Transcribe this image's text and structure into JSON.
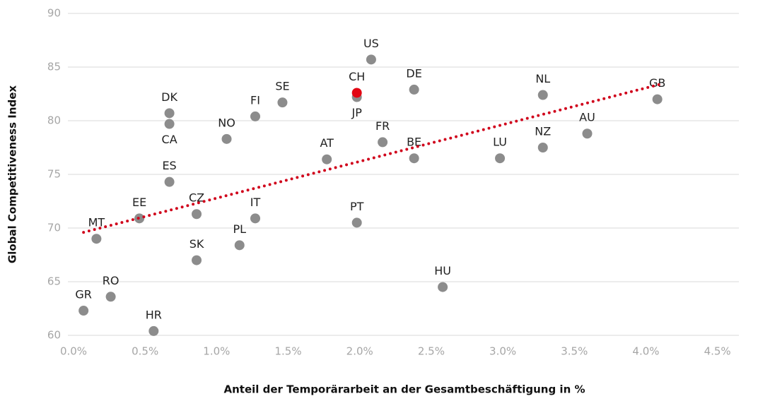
{
  "chart_data": {
    "type": "scatter",
    "xlabel": "Anteil der Temporärarbeit an der Gesamtbeschäftigung in %",
    "ylabel": "Global Competitiveness Index",
    "labels": [
      "GR",
      "RO",
      "MT",
      "EE",
      "HR",
      "SK",
      "CZ",
      "ES",
      "CA",
      "DK",
      "NO",
      "PL",
      "IT",
      "FI",
      "SE",
      "AT",
      "PT",
      "JP",
      "CH",
      "US",
      "FR",
      "BE",
      "DE",
      "HU",
      "LU",
      "NL",
      "NZ",
      "AU",
      "GB"
    ],
    "x": [
      0.07,
      0.26,
      0.16,
      0.46,
      0.56,
      0.86,
      0.86,
      0.67,
      0.67,
      0.67,
      1.07,
      1.16,
      1.27,
      1.27,
      1.46,
      1.77,
      1.98,
      1.98,
      1.98,
      2.08,
      2.16,
      2.38,
      2.38,
      2.58,
      2.98,
      3.28,
      3.28,
      3.59,
      4.08
    ],
    "y": [
      62.3,
      63.6,
      69.0,
      70.9,
      60.4,
      67.0,
      71.3,
      74.3,
      79.7,
      80.7,
      78.3,
      68.4,
      70.9,
      80.4,
      81.7,
      76.4,
      70.5,
      82.2,
      82.6,
      85.7,
      78.0,
      76.5,
      82.9,
      64.5,
      76.5,
      82.4,
      77.5,
      78.8,
      82.0
    ],
    "colors": [
      "#8c8c8c",
      "#8c8c8c",
      "#8c8c8c",
      "#8c8c8c",
      "#8c8c8c",
      "#8c8c8c",
      "#8c8c8c",
      "#8c8c8c",
      "#8c8c8c",
      "#8c8c8c",
      "#8c8c8c",
      "#8c8c8c",
      "#8c8c8c",
      "#8c8c8c",
      "#8c8c8c",
      "#8c8c8c",
      "#8c8c8c",
      "#8c8c8c",
      "#e30613",
      "#8c8c8c",
      "#8c8c8c",
      "#8c8c8c",
      "#8c8c8c",
      "#8c8c8c",
      "#8c8c8c",
      "#8c8c8c",
      "#8c8c8c",
      "#8c8c8c",
      "#8c8c8c"
    ],
    "trendline": {
      "x": [
        0.07,
        4.1
      ],
      "y": [
        69.6,
        83.4
      ],
      "color": "#d0021b"
    },
    "xlim": [
      0,
      4.65
    ],
    "ylim": [
      60,
      90
    ],
    "xticks": [
      {
        "value": 0,
        "label": "0.0%"
      },
      {
        "value": 0.5,
        "label": "0.5%"
      },
      {
        "value": 1,
        "label": "1.0%"
      },
      {
        "value": 1.5,
        "label": "1.5%"
      },
      {
        "value": 2,
        "label": "2.0%"
      },
      {
        "value": 2.5,
        "label": "2.5%"
      },
      {
        "value": 3,
        "label": "3.0%"
      },
      {
        "value": 3.5,
        "label": "3.5%"
      },
      {
        "value": 4,
        "label": "4.0%"
      },
      {
        "value": 4.5,
        "label": "4.5%"
      }
    ],
    "yticks": [
      60,
      65,
      70,
      75,
      80,
      85,
      90
    ],
    "grid": true
  }
}
